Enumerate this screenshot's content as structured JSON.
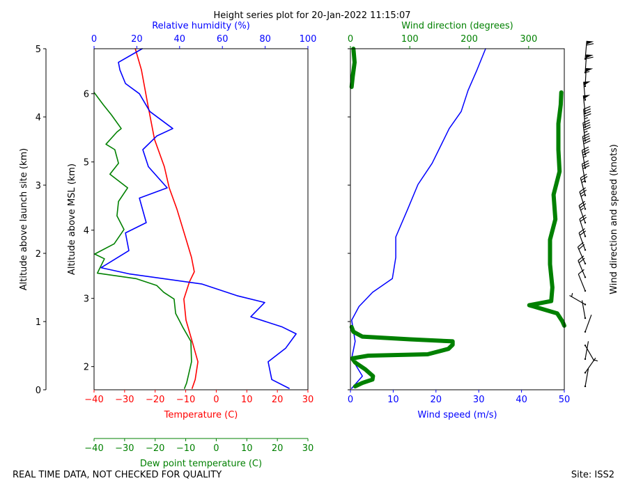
{
  "footer_left": "REAL TIME DATA, NOT CHECKED FOR QUALITY",
  "footer_right": "Site: ISS2",
  "chart_data": [
    {
      "type": "line",
      "title": "Height series plot for 20-Jan-2022 11:15:07",
      "ylabel": "Altitude above launch site (km)",
      "ylim": [
        0,
        5
      ],
      "yticks": [
        0,
        1,
        2,
        3,
        4,
        5
      ],
      "y2label": "Altitude above MSL (km)",
      "y2lim": [
        1.66,
        6.66
      ],
      "y2ticks": [
        2,
        3,
        4,
        5,
        6
      ],
      "xlabel": "Temperature (C)",
      "xcolor": "red",
      "xlim": [
        -40,
        30
      ],
      "xticks": [
        {
          "value": -40,
          "label": "−40"
        },
        {
          "value": -30,
          "label": "−30"
        },
        {
          "value": -20,
          "label": "−20"
        },
        {
          "value": -10,
          "label": "−10"
        },
        0,
        10,
        20,
        30
      ],
      "x2label": "Relative humidity (%)",
      "x2color": "blue",
      "x2lim": [
        0,
        100
      ],
      "x2ticks": [
        0,
        20,
        40,
        60,
        80,
        100
      ],
      "x3label": "Dew point temperature (C)",
      "x3color": "green",
      "x3lim": [
        -40,
        30
      ],
      "x3ticks": [
        {
          "value": -40,
          "label": "−40"
        },
        {
          "value": -30,
          "label": "−30"
        },
        {
          "value": -20,
          "label": "−20"
        },
        {
          "value": -10,
          "label": "−10"
        },
        0,
        10,
        20,
        30
      ],
      "series": [
        {
          "color": "red",
          "axis": "x",
          "x": [
            -26.5,
            -24.5,
            -22.4,
            -20.2,
            -17,
            -15.4,
            -12.9,
            -10.1,
            -8.1,
            -7.2,
            -8.8,
            -10.6,
            -9.9,
            -7.9,
            -6.0,
            -6.9,
            -7.9
          ],
          "altitudes": [
            5.0,
            4.69,
            4.18,
            3.67,
            3.27,
            2.96,
            2.65,
            2.24,
            1.94,
            1.73,
            1.58,
            1.33,
            1.02,
            0.71,
            0.41,
            0.15,
            0.02
          ]
        },
        {
          "color": "green",
          "axis": "x3",
          "x": [
            -40,
            -37,
            -34.3,
            -31.1,
            -32.5,
            -36.1,
            -33.2,
            -32,
            -34.8,
            -29,
            -32,
            -32.5,
            -30.2,
            -33.4,
            -39.8,
            -36.6,
            -38.9,
            -26.3,
            -19.5,
            -17.2,
            -13.8,
            -13.3,
            -11,
            -8.3,
            -8.1,
            -9.7,
            -10.4
          ],
          "altitudes": [
            4.36,
            4.18,
            4.03,
            3.83,
            3.78,
            3.6,
            3.52,
            3.32,
            3.16,
            2.96,
            2.76,
            2.55,
            2.35,
            2.14,
            1.99,
            1.92,
            1.71,
            1.63,
            1.53,
            1.43,
            1.33,
            1.12,
            0.92,
            0.71,
            0.41,
            0.1,
            0.02
          ]
        },
        {
          "color": "blue",
          "axis": "x2",
          "x": [
            22.5,
            11.4,
            12.1,
            14.7,
            21.2,
            26.1,
            36.8,
            29.3,
            22.8,
            25.4,
            34.2,
            21.2,
            24.4,
            14.7,
            16.3,
            3.3,
            16.3,
            50.5,
            66.8,
            79.8,
            73.3,
            88,
            94.5,
            89.6,
            81.4,
            83.1,
            91.2
          ],
          "altitudes": [
            5.0,
            4.8,
            4.69,
            4.49,
            4.34,
            4.08,
            3.83,
            3.72,
            3.52,
            3.27,
            2.96,
            2.81,
            2.45,
            2.3,
            2.04,
            1.79,
            1.7,
            1.55,
            1.38,
            1.28,
            1.07,
            0.92,
            0.82,
            0.61,
            0.41,
            0.15,
            0.02
          ]
        }
      ]
    },
    {
      "type": "line",
      "ylim": [
        0,
        5
      ],
      "yticks": [
        0,
        1,
        2,
        3,
        4,
        5
      ],
      "xlabel": "Wind speed (m/s)",
      "xcolor": "blue",
      "xlim": [
        0,
        50
      ],
      "xticks": [
        0,
        10,
        20,
        30,
        40,
        50
      ],
      "x2label": "Wind direction (degrees)",
      "x2color": "green",
      "x2lim": [
        0,
        360
      ],
      "x2ticks": [
        0,
        100,
        200,
        300
      ],
      "series": [
        {
          "color": "blue",
          "axis": "x",
          "width": 1.5,
          "x": [
            31.6,
            29.6,
            27.5,
            25.9,
            23.1,
            19.1,
            15.8,
            13.4,
            10.6,
            10.6,
            9.8,
            5.2,
            2.0,
            0.3,
            1.1,
            0.3,
            2.8,
            0.3
          ],
          "altitudes": [
            5.0,
            4.69,
            4.39,
            4.08,
            3.83,
            3.32,
            3.01,
            2.65,
            2.24,
            1.94,
            1.63,
            1.43,
            1.22,
            1.02,
            0.71,
            0.46,
            0.2,
            0.02
          ]
        },
        {
          "color": "green",
          "axis": "x2",
          "width": 6,
          "x": [
            5,
            7,
            4,
            2,
            null,
            355,
            354,
            350,
            350,
            352,
            342,
            345,
            336,
            336,
            340,
            338,
            301,
            348,
            357,
            360,
            null,
            2,
            5,
            20,
            100,
            172,
            172,
            165,
            130,
            30,
            3,
            8,
            25,
            38,
            37,
            20,
            8
          ],
          "altitudes": [
            5.0,
            4.8,
            4.6,
            4.44,
            null,
            4.36,
            4.18,
            3.9,
            3.52,
            3.2,
            2.86,
            2.5,
            2.2,
            1.84,
            1.5,
            1.3,
            1.24,
            1.12,
            1.0,
            0.94,
            null,
            0.92,
            0.85,
            0.78,
            0.74,
            0.71,
            0.66,
            0.6,
            0.52,
            0.5,
            0.46,
            0.4,
            0.3,
            0.2,
            0.15,
            0.1,
            0.05
          ]
        }
      ]
    },
    {
      "type": "barbs",
      "ylabel": "Wind direction and speed (knots)",
      "ylim": [
        0,
        5
      ],
      "altitudes": [
        0.05,
        0.25,
        0.45,
        0.65,
        0.85,
        1.05,
        1.25,
        1.45,
        1.65,
        1.85,
        2.05,
        2.25,
        2.45,
        2.65,
        2.85,
        3.05,
        3.25,
        3.45,
        3.65,
        3.85,
        4.05,
        4.25,
        4.45,
        4.65,
        4.85
      ],
      "speeds": [
        2,
        6,
        2,
        2,
        2,
        2,
        4,
        10,
        19,
        21,
        19,
        19,
        23,
        25,
        27,
        31,
        35,
        39,
        43,
        45,
        49,
        52,
        54,
        58,
        60
      ],
      "directions": [
        10,
        35,
        10,
        150,
        20,
        350,
        300,
        338,
        337,
        336,
        340,
        342,
        340,
        342,
        345,
        350,
        350,
        352,
        353,
        355,
        354,
        355,
        3,
        4,
        5
      ]
    }
  ]
}
